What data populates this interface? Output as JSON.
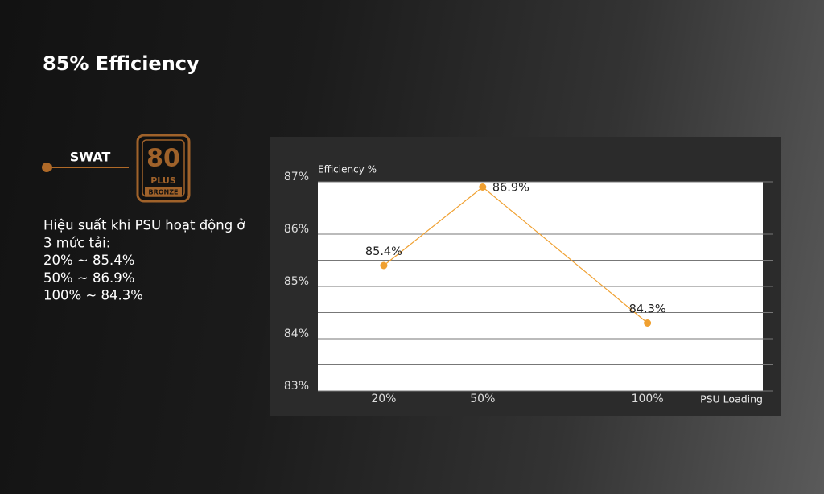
{
  "title": "85% Efficiency",
  "brand": "SWAT",
  "badge": {
    "number": "80",
    "plus": "PLUS",
    "grade": "BRONZE"
  },
  "description": [
    "Hiệu suất khi PSU hoạt động ở",
    "3 mức tải:",
    "20% ~ 85.4%",
    "50% ~ 86.9%",
    "100% ~ 84.3%"
  ],
  "chart_data": {
    "type": "line",
    "y_label": "Efficiency %",
    "x_label": "PSU Loading",
    "x": [
      20,
      50,
      100
    ],
    "values": [
      85.4,
      86.9,
      84.3
    ],
    "value_labels": [
      "85.4%",
      "86.9%",
      "84.3%"
    ],
    "color": "#f0a030",
    "xlim": [
      0,
      135
    ],
    "xticks": [
      {
        "value": 20,
        "label": "20%"
      },
      {
        "value": 50,
        "label": "50%"
      },
      {
        "value": 100,
        "label": "100%"
      }
    ],
    "ylim": [
      83,
      87
    ],
    "yticks": [
      {
        "value": 83,
        "label": "83%"
      },
      {
        "value": 84,
        "label": "84%"
      },
      {
        "value": 85,
        "label": "85%"
      },
      {
        "value": 86,
        "label": "86%"
      },
      {
        "value": 87,
        "label": "87%"
      }
    ],
    "minor_yticks": [
      83.5,
      84.5,
      85.5,
      86.5
    ],
    "grid": true
  }
}
